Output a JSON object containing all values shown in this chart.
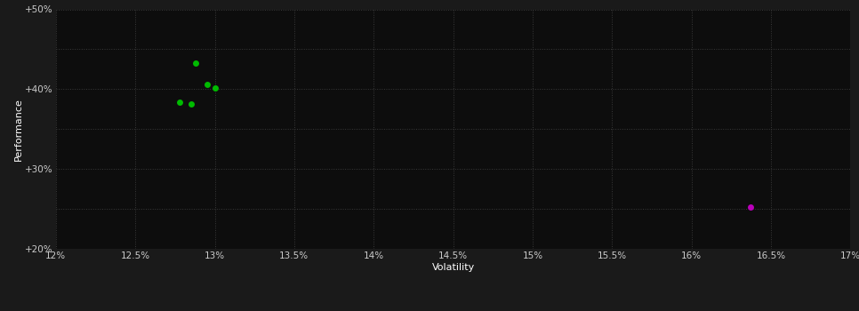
{
  "background_color": "#1a1a1a",
  "plot_bg_color": "#0d0d0d",
  "grid_color": "#3a3a3a",
  "grid_style": ":",
  "xlabel": "Volatility",
  "ylabel": "Performance",
  "xlim": [
    0.12,
    0.17
  ],
  "ylim": [
    0.2,
    0.5
  ],
  "xticks": [
    0.12,
    0.125,
    0.13,
    0.135,
    0.14,
    0.145,
    0.15,
    0.155,
    0.16,
    0.165,
    0.17
  ],
  "yticks": [
    0.2,
    0.25,
    0.3,
    0.35,
    0.4,
    0.45,
    0.5
  ],
  "ytick_labels": [
    "+20%",
    "",
    "+30%",
    "",
    "+40%",
    "",
    "+50%"
  ],
  "xtick_labels": [
    "12%",
    "12.5%",
    "13%",
    "13.5%",
    "14%",
    "14.5%",
    "15%",
    "15.5%",
    "16%",
    "16.5%",
    "17%"
  ],
  "green_points": [
    [
      0.1288,
      0.433
    ],
    [
      0.1295,
      0.406
    ],
    [
      0.13,
      0.402
    ],
    [
      0.1278,
      0.384
    ],
    [
      0.1285,
      0.381
    ]
  ],
  "magenta_points": [
    [
      0.1637,
      0.252
    ]
  ],
  "green_color": "#00bb00",
  "magenta_color": "#bb00bb",
  "text_color": "#ffffff",
  "tick_color": "#cccccc",
  "marker_size": 5,
  "font_size_axis_label": 8,
  "font_size_ticks": 7.5
}
